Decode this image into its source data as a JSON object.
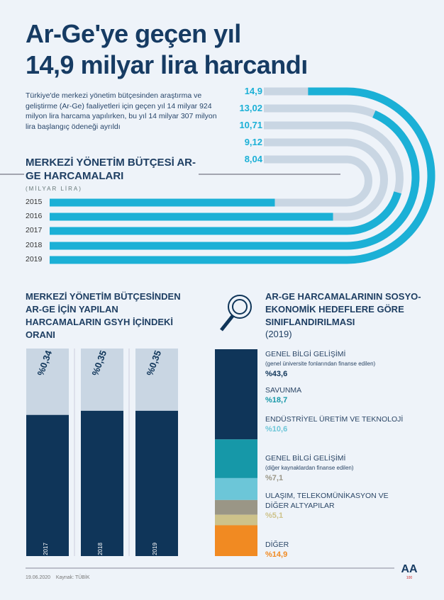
{
  "title_line1": "Ar-Ge'ye geçen yıl",
  "title_line2": "14,9 milyar lira harcandı",
  "intro": "Türkiye'de merkezi yönetim bütçesinden araştırma ve geliştirme (Ar-Ge) faaliyetleri için geçen yıl 14 milyar 924 milyon lira harcama yapılırken, bu yıl 14 milyar 307 milyon lira başlangıç ödeneği ayrıldı",
  "colors": {
    "cyan": "#1bb0d6",
    "track": "#c9d6e3",
    "navy": "#0f3559",
    "teal": "#1698a8",
    "light": "#6cc6d8",
    "gray": "#9a9686",
    "khaki": "#cdc28a",
    "orange": "#f18a22"
  },
  "footer": {
    "date": "19.06.2020",
    "source": "Kaynak: TÜBİK",
    "logo": "ANADOLU AJANSI 100"
  },
  "chart_data": [
    {
      "type": "bar",
      "title": "MERKEZİ YÖNETİM BÜTÇESİ AR-GE HARCAMALARI",
      "subtitle": "(MİLYAR LİRA)",
      "categories": [
        "2015",
        "2016",
        "2017",
        "2018",
        "2019"
      ],
      "values": [
        8.04,
        9.12,
        10.71,
        13.02,
        14.9
      ],
      "value_labels": [
        "8,04",
        "9,12",
        "10,71",
        "13,02",
        "14,9"
      ]
    },
    {
      "type": "bar",
      "title": "MERKEZİ YÖNETİM BÜTÇESİNDEN AR-GE İÇİN YAPILAN HARCAMALARIN GSYH İÇİNDEKİ ORANI",
      "categories": [
        "2017",
        "2018",
        "2019"
      ],
      "values": [
        0.34,
        0.35,
        0.35
      ],
      "value_labels": [
        "%0,34",
        "%0,35",
        "%0,35"
      ],
      "ylim": [
        0,
        0.5
      ]
    },
    {
      "type": "bar",
      "stacked": true,
      "title": "AR-GE HARCAMALARININ SOSYO-EKONOMİK HEDEFLERE GÖRE SINIFLANDIRILMASI",
      "subtitle": "(2019)",
      "series": [
        {
          "name": "GENEL BİLGİ GELİŞİMİ",
          "note": "(genel üniversite fonlarından finanse edilen)",
          "value": 43.6,
          "label": "%43,6",
          "color": "#0f3559"
        },
        {
          "name": "SAVUNMA",
          "note": "",
          "value": 18.7,
          "label": "%18,7",
          "color": "#1698a8"
        },
        {
          "name": "ENDÜSTRİYEL ÜRETİM VE TEKNOLOJİ",
          "note": "",
          "value": 10.6,
          "label": "%10,6",
          "color": "#6cc6d8"
        },
        {
          "name": "GENEL BİLGİ GELİŞİMİ",
          "note": "(diğer kaynaklardan finanse edilen)",
          "value": 7.1,
          "label": "%7,1",
          "color": "#9a9686"
        },
        {
          "name": "ULAŞIM, TELEKOMÜNİKASYON VE DİĞER ALTYAPILAR",
          "note": "",
          "value": 5.1,
          "label": "%5,1",
          "color": "#cdc28a"
        },
        {
          "name": "DİĞER",
          "note": "",
          "value": 14.9,
          "label": "%14,9",
          "color": "#f18a22"
        }
      ]
    }
  ]
}
